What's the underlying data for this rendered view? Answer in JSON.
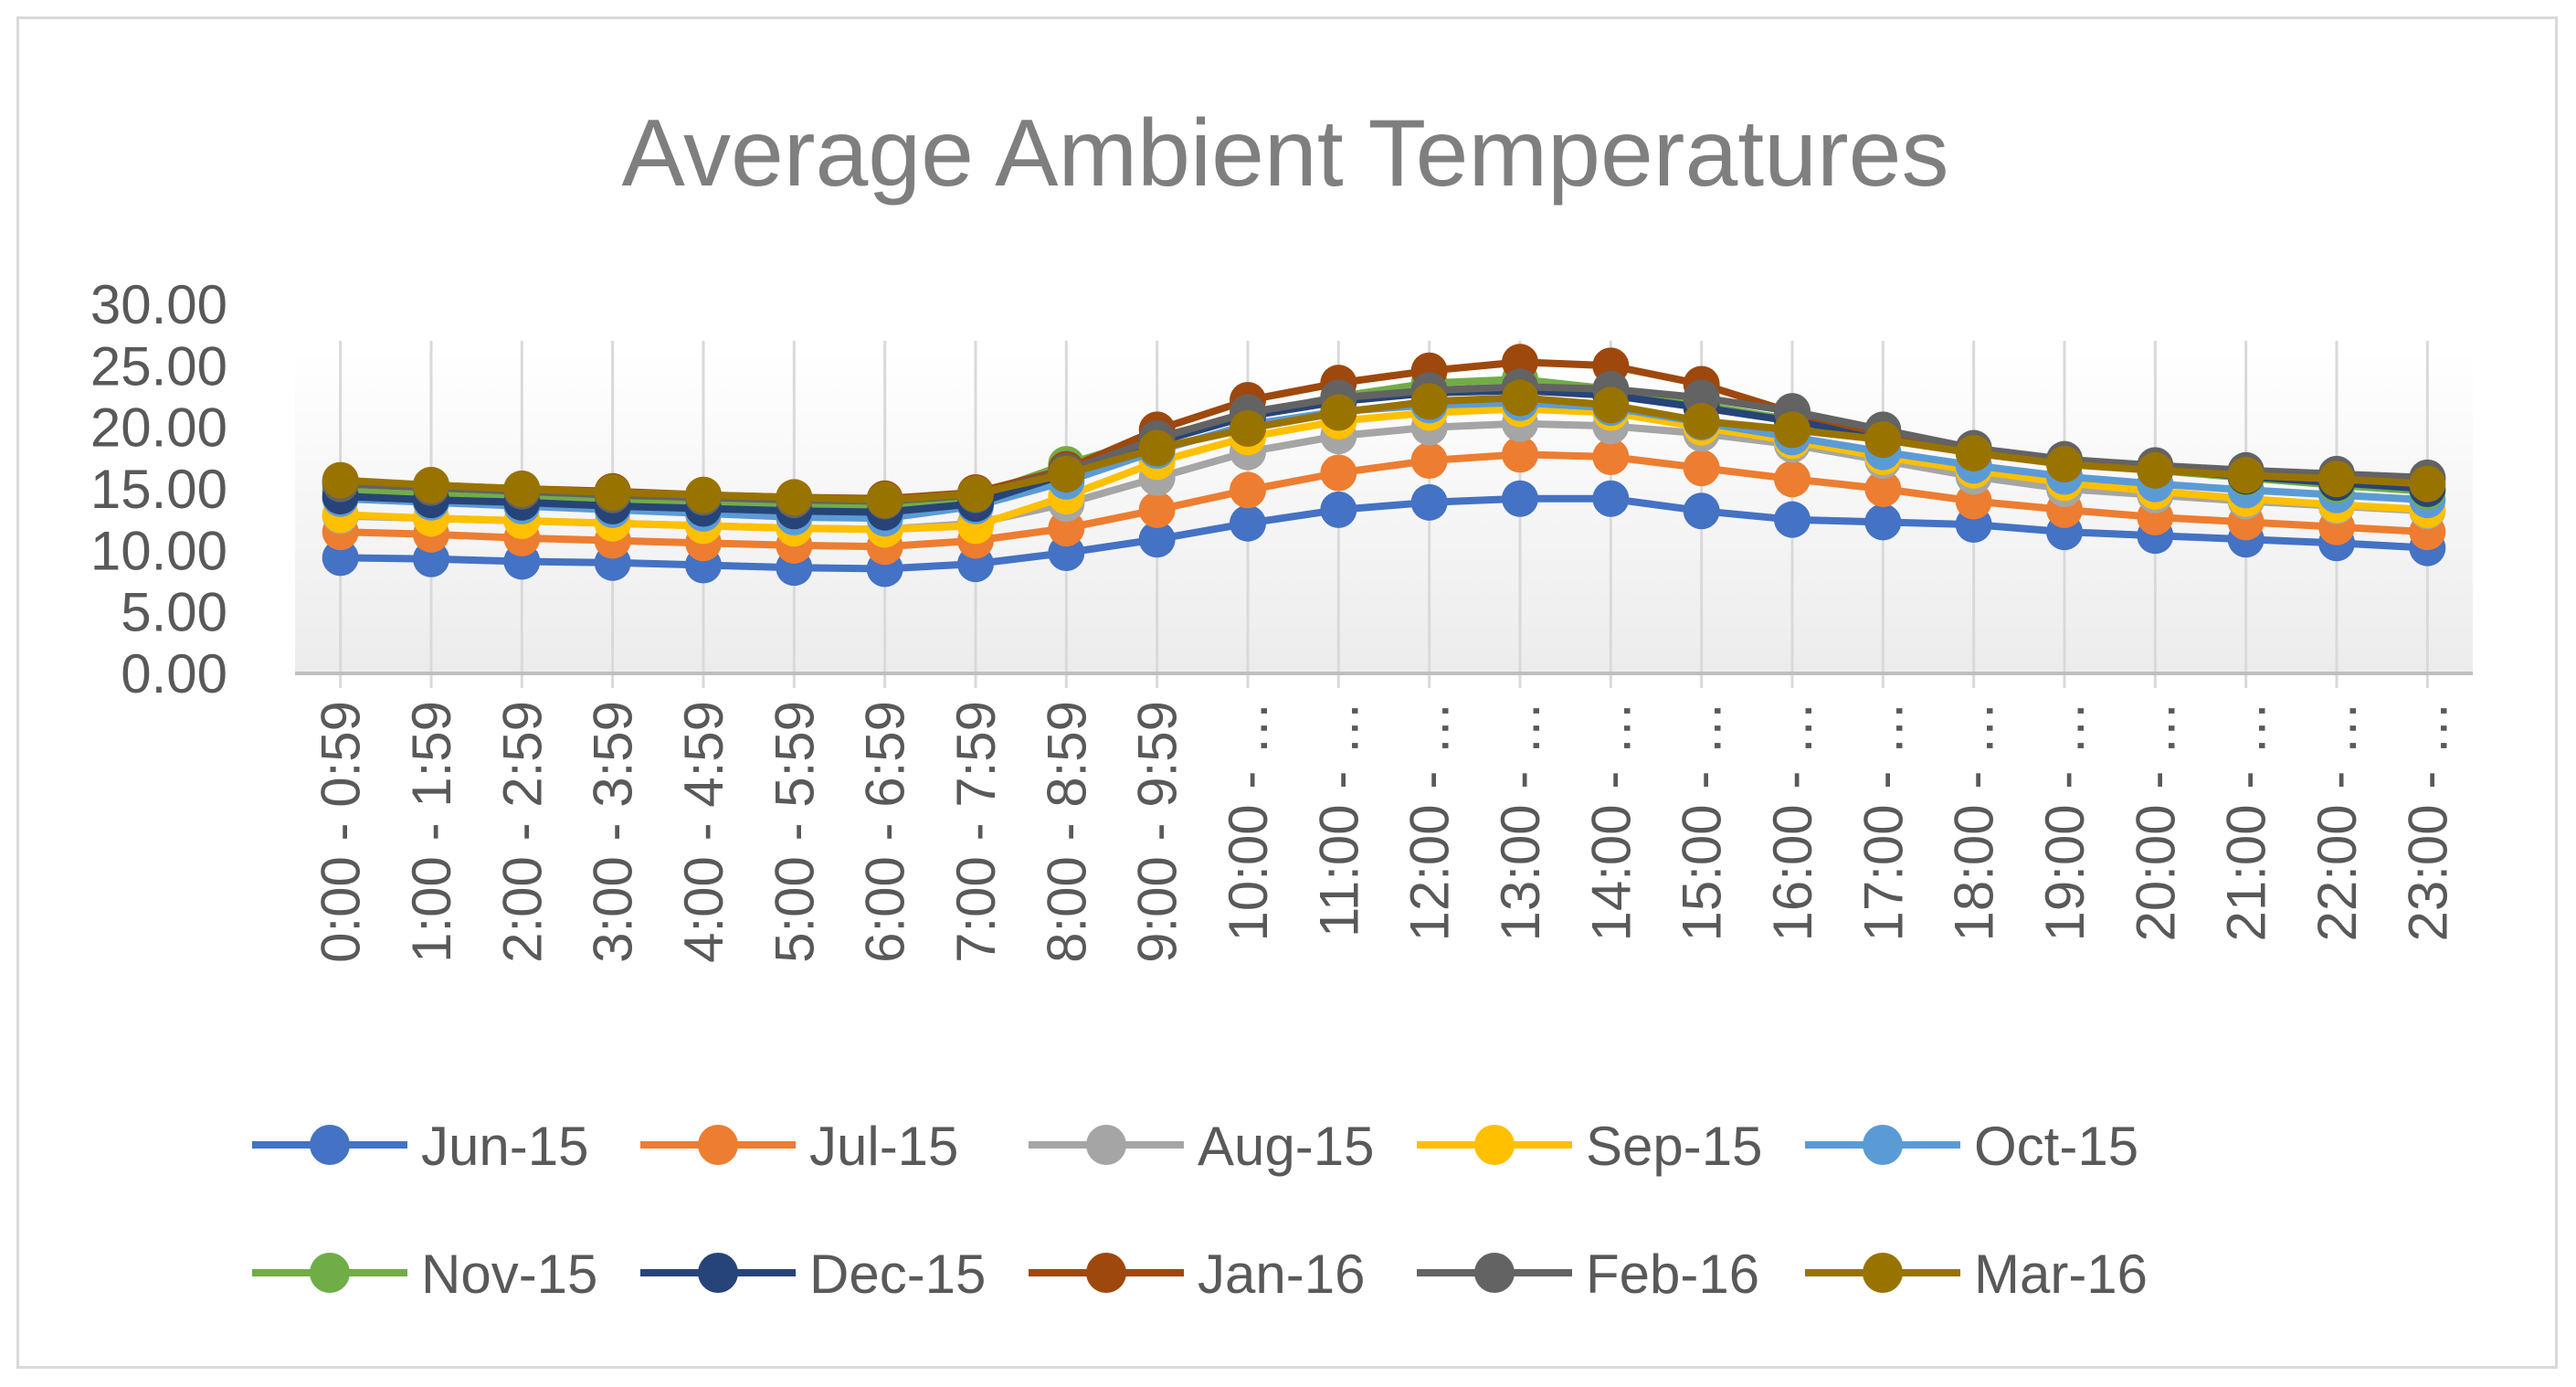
{
  "chart_data": {
    "type": "line",
    "title": "Average Ambient Temperatures",
    "xlabel": "",
    "ylabel": "",
    "ylim": [
      0,
      30
    ],
    "yticks": [
      "0.00",
      "5.00",
      "10.00",
      "15.00",
      "20.00",
      "25.00",
      "30.00"
    ],
    "grid": "vertical",
    "legend_position": "bottom",
    "categories": [
      "0:00 - 0:59",
      "1:00 - 1:59",
      "2:00 - 2:59",
      "3:00 - 3:59",
      "4:00 - 4:59",
      "5:00 - 5:59",
      "6:00 - 6:59",
      "7:00 - 7:59",
      "8:00 - 8:59",
      "9:00 - 9:59",
      "10:00 - …",
      "11:00 - …",
      "12:00 - …",
      "13:00 - …",
      "14:00 - …",
      "15:00 - …",
      "16:00 - …",
      "17:00 - …",
      "18:00 - …",
      "19:00 - …",
      "20:00 - …",
      "21:00 - …",
      "22:00 - …",
      "23:00 - …"
    ],
    "series": [
      {
        "name": "Jun-15",
        "color": "#4472c4",
        "values": [
          9.4,
          9.3,
          9.1,
          9.0,
          8.8,
          8.6,
          8.5,
          8.9,
          9.8,
          10.9,
          12.2,
          13.3,
          13.9,
          14.2,
          14.2,
          13.2,
          12.5,
          12.3,
          12.1,
          11.5,
          11.2,
          10.9,
          10.6,
          10.2
        ]
      },
      {
        "name": "Jul-15",
        "color": "#ed7d31",
        "values": [
          11.5,
          11.3,
          11.0,
          10.8,
          10.6,
          10.4,
          10.3,
          10.8,
          11.8,
          13.3,
          14.9,
          16.3,
          17.3,
          17.8,
          17.6,
          16.7,
          15.8,
          15.0,
          14.0,
          13.3,
          12.7,
          12.3,
          11.9,
          11.5
        ]
      },
      {
        "name": "Aug-15",
        "color": "#a5a5a5",
        "values": [
          12.8,
          12.6,
          12.4,
          12.2,
          12.0,
          11.8,
          11.7,
          12.2,
          13.8,
          15.9,
          18.0,
          19.3,
          20.0,
          20.3,
          20.1,
          19.5,
          18.6,
          17.3,
          16.0,
          15.0,
          14.5,
          14.0,
          13.6,
          13.2
        ]
      },
      {
        "name": "Sep-15",
        "color": "#ffc000",
        "values": [
          12.9,
          12.6,
          12.4,
          12.2,
          12.0,
          11.8,
          11.7,
          12.0,
          14.4,
          17.2,
          19.2,
          20.5,
          21.2,
          21.5,
          21.2,
          20.0,
          18.9,
          17.6,
          16.5,
          15.5,
          14.8,
          14.2,
          13.7,
          13.3
        ]
      },
      {
        "name": "Oct-15",
        "color": "#5b9bd5",
        "values": [
          14.2,
          13.9,
          13.6,
          13.3,
          13.0,
          12.7,
          12.6,
          13.6,
          15.6,
          18.1,
          20.2,
          21.3,
          21.8,
          22.0,
          21.6,
          20.4,
          19.2,
          18.0,
          16.9,
          16.0,
          15.4,
          14.9,
          14.5,
          14.1
        ]
      },
      {
        "name": "Nov-15",
        "color": "#70ad47",
        "values": [
          14.8,
          14.5,
          14.3,
          14.0,
          13.9,
          13.7,
          13.5,
          14.4,
          17.0,
          19.2,
          21.0,
          22.5,
          23.6,
          23.9,
          23.1,
          21.8,
          20.6,
          19.4,
          18.1,
          17.2,
          16.5,
          15.9,
          15.3,
          14.8
        ]
      },
      {
        "name": "Dec-15",
        "color": "#264478",
        "values": [
          14.4,
          14.1,
          13.9,
          13.6,
          13.4,
          13.2,
          13.1,
          13.8,
          16.2,
          18.8,
          20.9,
          22.1,
          22.8,
          23.0,
          22.6,
          21.6,
          20.5,
          19.3,
          18.2,
          17.3,
          16.6,
          16.0,
          15.5,
          15.0
        ]
      },
      {
        "name": "Jan-16",
        "color": "#9e480e",
        "values": [
          15.6,
          15.3,
          15.0,
          14.8,
          14.5,
          14.3,
          14.2,
          14.7,
          16.6,
          19.8,
          22.2,
          23.6,
          24.6,
          25.3,
          25.0,
          23.5,
          21.2,
          19.5,
          18.2,
          17.3,
          16.8,
          16.4,
          16.1,
          15.8
        ]
      },
      {
        "name": "Feb-16",
        "color": "#636363",
        "values": [
          15.4,
          15.1,
          14.8,
          14.5,
          14.3,
          14.1,
          14.0,
          14.5,
          16.4,
          19.1,
          21.2,
          22.4,
          23.0,
          23.3,
          23.1,
          22.4,
          21.3,
          19.8,
          18.3,
          17.4,
          16.9,
          16.5,
          16.2,
          15.9
        ]
      },
      {
        "name": "Mar-16",
        "color": "#997300",
        "values": [
          15.7,
          15.3,
          15.0,
          14.7,
          14.5,
          14.3,
          14.1,
          14.6,
          16.2,
          18.3,
          19.9,
          21.2,
          22.1,
          22.4,
          21.8,
          20.5,
          19.8,
          19.0,
          17.9,
          17.0,
          16.5,
          16.1,
          15.8,
          15.4
        ]
      }
    ]
  }
}
